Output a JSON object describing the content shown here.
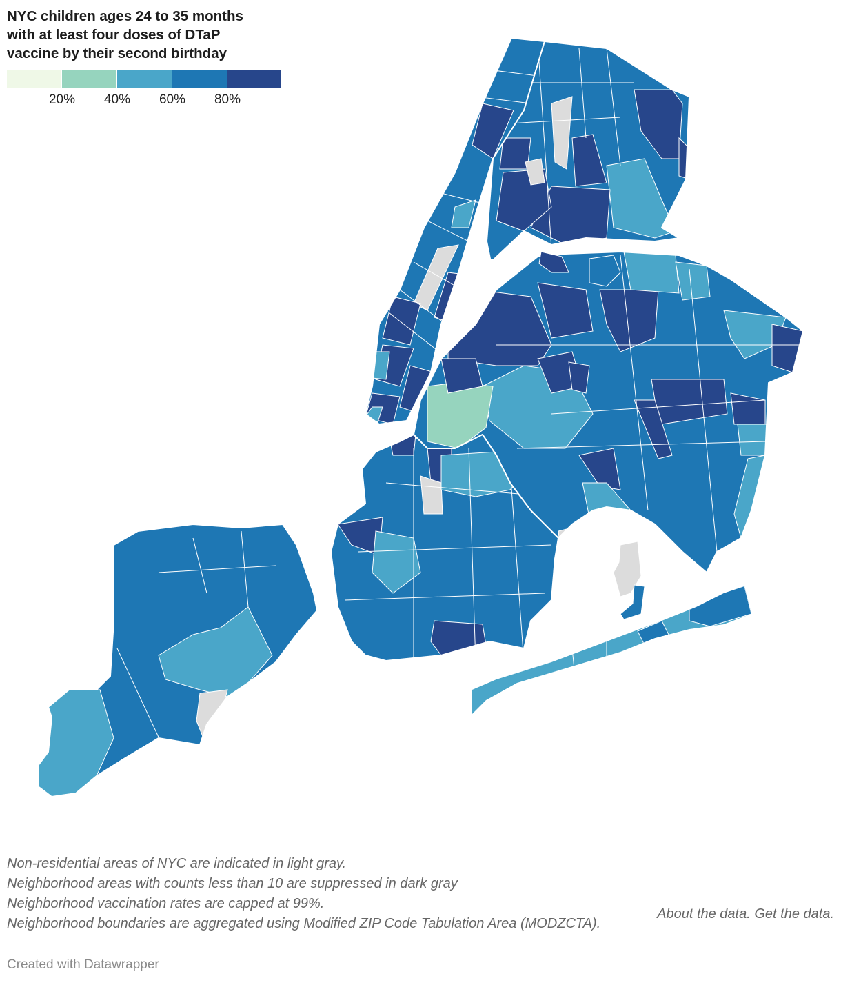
{
  "title": "NYC children ages 24 to 35 months\nwith at least four doses of DTaP\nvaccine by their second birthday",
  "legend": {
    "bins": [
      {
        "color": "#eff8e7"
      },
      {
        "color": "#96d4be"
      },
      {
        "color": "#4aa6c9"
      },
      {
        "color": "#1e77b4"
      },
      {
        "color": "#27468b"
      }
    ],
    "labels": [
      "20%",
      "40%",
      "60%",
      "80%"
    ]
  },
  "colors": {
    "non_residential": "#dcdcdc",
    "suppressed": "#555555",
    "boundary": "#ffffff"
  },
  "notes": [
    "Non-residential areas of NYC are indicated in light gray.",
    "Neighborhood areas with counts less than 10 are suppressed in dark gray",
    "Neighborhood vaccination rates are capped at 99%.",
    "Neighborhood boundaries are aggregated using Modified ZIP Code Tabulation Area (MODZCTA)."
  ],
  "links": {
    "about": "About the data.",
    "get": "Get the data."
  },
  "credit": "Created with Datawrapper"
}
